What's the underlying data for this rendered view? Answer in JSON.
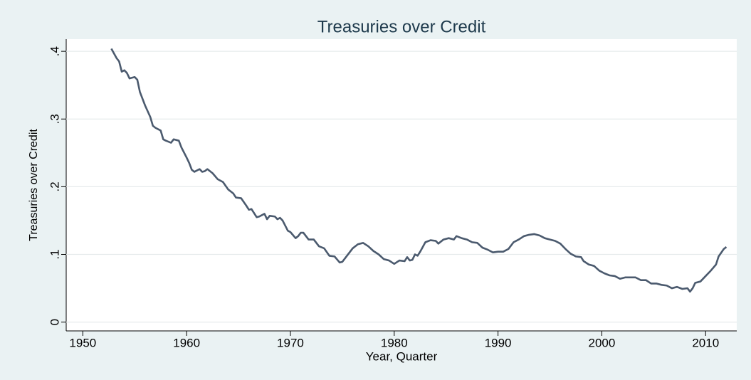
{
  "chart_data": {
    "type": "line",
    "title": "Treasuries over Credit",
    "xlabel": "Year, Quarter",
    "ylabel": "Treasuries over Credit",
    "x": [
      1952.75,
      1953.25,
      1953.5,
      1953.75,
      1954.0,
      1954.25,
      1954.5,
      1955.0,
      1955.25,
      1955.5,
      1956.0,
      1956.5,
      1956.75,
      1957.0,
      1957.5,
      1957.75,
      1958.0,
      1958.5,
      1958.75,
      1959.25,
      1959.5,
      1960.0,
      1960.25,
      1960.5,
      1960.75,
      1961.25,
      1961.5,
      1961.75,
      1962.0,
      1962.5,
      1963.0,
      1963.5,
      1964.0,
      1964.5,
      1964.75,
      1965.25,
      1965.75,
      1966.0,
      1966.25,
      1966.75,
      1967.0,
      1967.5,
      1967.75,
      1968.0,
      1968.5,
      1968.75,
      1969.0,
      1969.25,
      1969.75,
      1970.0,
      1970.5,
      1970.75,
      1971.0,
      1971.25,
      1971.75,
      1972.25,
      1972.75,
      1973.25,
      1973.75,
      1974.25,
      1974.75,
      1975.0,
      1975.5,
      1976.0,
      1976.5,
      1977.0,
      1977.5,
      1978.0,
      1978.5,
      1979.0,
      1979.5,
      1980.0,
      1980.5,
      1981.0,
      1981.25,
      1981.5,
      1981.75,
      1982.0,
      1982.25,
      1982.5,
      1983.0,
      1983.5,
      1984.0,
      1984.25,
      1984.75,
      1985.25,
      1985.75,
      1986.0,
      1986.5,
      1987.0,
      1987.5,
      1988.0,
      1988.5,
      1989.0,
      1989.5,
      1990.0,
      1990.5,
      1991.0,
      1991.5,
      1992.0,
      1992.5,
      1993.0,
      1993.5,
      1994.0,
      1994.5,
      1995.0,
      1995.5,
      1996.0,
      1996.5,
      1997.0,
      1997.5,
      1998.0,
      1998.25,
      1998.75,
      1999.25,
      1999.75,
      2000.25,
      2000.75,
      2001.25,
      2001.75,
      2002.25,
      2002.75,
      2003.25,
      2003.75,
      2004.25,
      2004.75,
      2005.25,
      2005.75,
      2006.25,
      2006.75,
      2007.25,
      2007.75,
      2008.25,
      2008.5,
      2008.75,
      2009.0,
      2009.5,
      2010.0,
      2010.5,
      2011.0,
      2011.25,
      2011.75,
      2012.0
    ],
    "values": [
      0.404,
      0.39,
      0.385,
      0.37,
      0.372,
      0.368,
      0.36,
      0.362,
      0.358,
      0.34,
      0.32,
      0.303,
      0.29,
      0.287,
      0.283,
      0.27,
      0.268,
      0.265,
      0.27,
      0.268,
      0.258,
      0.243,
      0.235,
      0.225,
      0.222,
      0.226,
      0.222,
      0.223,
      0.226,
      0.22,
      0.211,
      0.207,
      0.196,
      0.19,
      0.184,
      0.183,
      0.172,
      0.166,
      0.167,
      0.155,
      0.156,
      0.16,
      0.152,
      0.157,
      0.156,
      0.152,
      0.154,
      0.15,
      0.135,
      0.133,
      0.124,
      0.127,
      0.132,
      0.132,
      0.122,
      0.122,
      0.112,
      0.109,
      0.098,
      0.097,
      0.088,
      0.089,
      0.099,
      0.109,
      0.115,
      0.117,
      0.112,
      0.105,
      0.1,
      0.093,
      0.091,
      0.086,
      0.091,
      0.09,
      0.096,
      0.091,
      0.092,
      0.1,
      0.098,
      0.104,
      0.118,
      0.121,
      0.12,
      0.116,
      0.122,
      0.124,
      0.122,
      0.127,
      0.124,
      0.122,
      0.118,
      0.117,
      0.11,
      0.107,
      0.103,
      0.104,
      0.104,
      0.108,
      0.118,
      0.122,
      0.127,
      0.129,
      0.13,
      0.128,
      0.124,
      0.122,
      0.12,
      0.116,
      0.108,
      0.101,
      0.097,
      0.096,
      0.09,
      0.085,
      0.083,
      0.076,
      0.072,
      0.069,
      0.068,
      0.064,
      0.066,
      0.066,
      0.066,
      0.062,
      0.062,
      0.057,
      0.057,
      0.055,
      0.054,
      0.05,
      0.052,
      0.049,
      0.05,
      0.045,
      0.05,
      0.058,
      0.06,
      0.068,
      0.076,
      0.085,
      0.097,
      0.108,
      0.111
    ],
    "color": "#4b5a6e",
    "xlim": [
      1948.4,
      2013.0
    ],
    "xticks": [
      1950,
      1960,
      1970,
      1980,
      1990,
      2000,
      2010
    ],
    "ylim": [
      -0.013,
      0.418
    ],
    "yticks": [
      0,
      {
        "value": 0.1,
        "label": ".1"
      },
      {
        "value": 0.2,
        "label": ".2"
      },
      {
        "value": 0.3,
        "label": ".3"
      },
      {
        "value": 0.4,
        "label": ".4"
      }
    ],
    "grid": true
  }
}
